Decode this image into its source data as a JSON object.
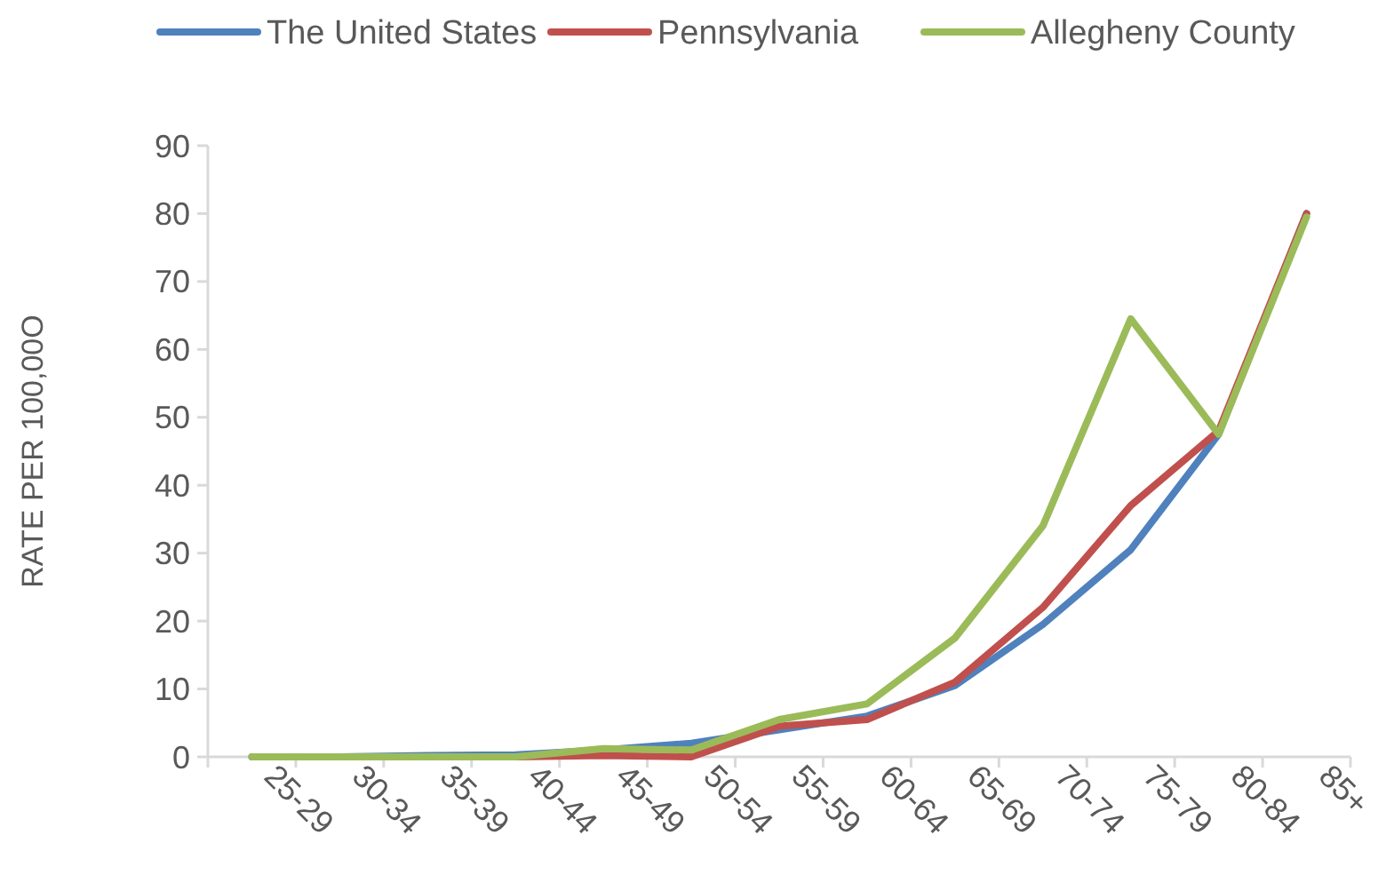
{
  "chart_data": {
    "type": "line",
    "ylabel": "RATE PER 100,00O",
    "categories": [
      "25-29",
      "30-34",
      "35-39",
      "40-44",
      "45-49",
      "50-54",
      "55-59",
      "60-64",
      "65-69",
      "70-74",
      "75-79",
      "80-84",
      "85+"
    ],
    "series": [
      {
        "name": "The United States",
        "color": "#4f81bd",
        "values": [
          0,
          0,
          0.2,
          0.3,
          1,
          2,
          4,
          6,
          10.5,
          19.5,
          30.5,
          47.5,
          80
        ]
      },
      {
        "name": "Pennsylvania",
        "color": "#c0504d",
        "values": [
          null,
          null,
          0,
          0,
          0.2,
          0,
          4.5,
          5.5,
          11,
          22,
          37,
          48,
          80
        ]
      },
      {
        "name": "Allegheny County",
        "color": "#9bbb59",
        "values": [
          0,
          0,
          0,
          0,
          1.2,
          1,
          5.5,
          7.8,
          17.5,
          34,
          64.5,
          47.5,
          79.5
        ]
      }
    ],
    "ylim": [
      0,
      90
    ],
    "yticks": [
      0,
      10,
      20,
      30,
      40,
      50,
      60,
      70,
      80,
      90
    ],
    "legend": "top",
    "grid": false,
    "marker": "none",
    "line_style": "solid"
  }
}
